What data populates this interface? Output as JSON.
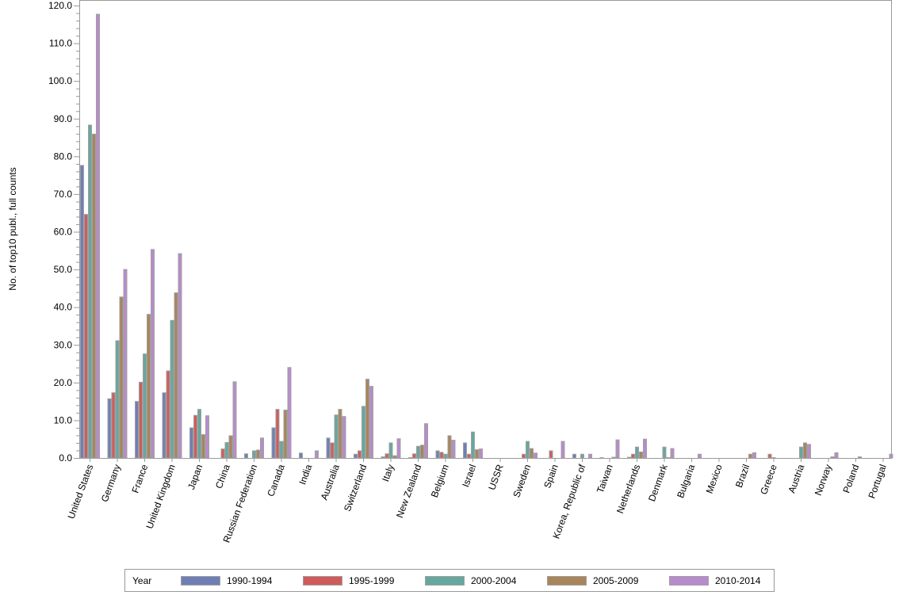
{
  "chart_data": {
    "type": "bar",
    "title": "",
    "xlabel": "",
    "ylabel": "No. of top10 publ., full counts",
    "ylim": [
      0,
      120
    ],
    "yticks": [
      "0.0",
      "10.0",
      "20.0",
      "30.0",
      "40.0",
      "50.0",
      "60.0",
      "70.0",
      "80.0",
      "90.0",
      "100.0",
      "110.0",
      "120.0"
    ],
    "grid": false,
    "legend": {
      "title": "Year",
      "placement": "bottom"
    },
    "categories": [
      "United States",
      "Germany",
      "France",
      "United Kingdom",
      "Japan",
      "China",
      "Russian Federation",
      "Canada",
      "India",
      "Australia",
      "Switzerland",
      "Italy",
      "New Zealand",
      "Belgium",
      "Israel",
      "USSR",
      "Sweden",
      "Spain",
      "Korea, Republic of",
      "Taiwan",
      "Netherlands",
      "Denmark",
      "Bulgaria",
      "Mexico",
      "Brazil",
      "Greece",
      "Austria",
      "Norway",
      "Poland",
      "Portugal"
    ],
    "series": [
      {
        "name": "1990-1994",
        "color": "#6f7fb5",
        "values": [
          77.7,
          15.8,
          15.1,
          17.4,
          8.1,
          0,
          1.2,
          8.1,
          1.4,
          5.4,
          1.1,
          0.4,
          0.2,
          2.0,
          4.1,
          0,
          0,
          0,
          1.1,
          0.2,
          0.3,
          0,
          0,
          0,
          0,
          0,
          0,
          0,
          0,
          0
        ]
      },
      {
        "name": "1995-1999",
        "color": "#d05b5b",
        "values": [
          64.7,
          17.4,
          20.2,
          23.2,
          11.4,
          2.5,
          0,
          13.0,
          0,
          4.1,
          2.0,
          1.2,
          1.2,
          1.6,
          1.1,
          0,
          1.1,
          2.0,
          0,
          0,
          1.1,
          0,
          0,
          0,
          0,
          1.1,
          0,
          0,
          0,
          0
        ]
      },
      {
        "name": "2000-2004",
        "color": "#66a79e",
        "values": [
          88.4,
          31.2,
          27.7,
          36.6,
          13.0,
          4.2,
          2.0,
          4.5,
          0,
          11.5,
          13.8,
          4.1,
          3.2,
          1.1,
          7.0,
          0,
          4.5,
          0,
          1.1,
          0,
          3.0,
          3.0,
          0,
          0,
          0,
          0.2,
          3.0,
          0,
          0,
          0
        ]
      },
      {
        "name": "2005-2009",
        "color": "#a8855b",
        "values": [
          86.0,
          42.8,
          38.2,
          43.9,
          6.3,
          6.0,
          2.2,
          12.8,
          0,
          13.0,
          21.0,
          0.7,
          3.5,
          6.0,
          2.3,
          0,
          2.6,
          0,
          0,
          0.3,
          1.7,
          0.2,
          0,
          0,
          1.1,
          0,
          4.1,
          0.4,
          0.4,
          0
        ]
      },
      {
        "name": "2010-2014",
        "color": "#b88bcc",
        "values": [
          117.8,
          50.1,
          55.4,
          54.3,
          11.3,
          20.3,
          5.4,
          24.1,
          2.0,
          11.1,
          19.1,
          5.2,
          9.2,
          4.8,
          2.5,
          0,
          1.4,
          4.5,
          1.1,
          4.9,
          5.1,
          2.6,
          1.1,
          0,
          1.5,
          0,
          3.7,
          1.5,
          0,
          1.1
        ]
      }
    ]
  }
}
